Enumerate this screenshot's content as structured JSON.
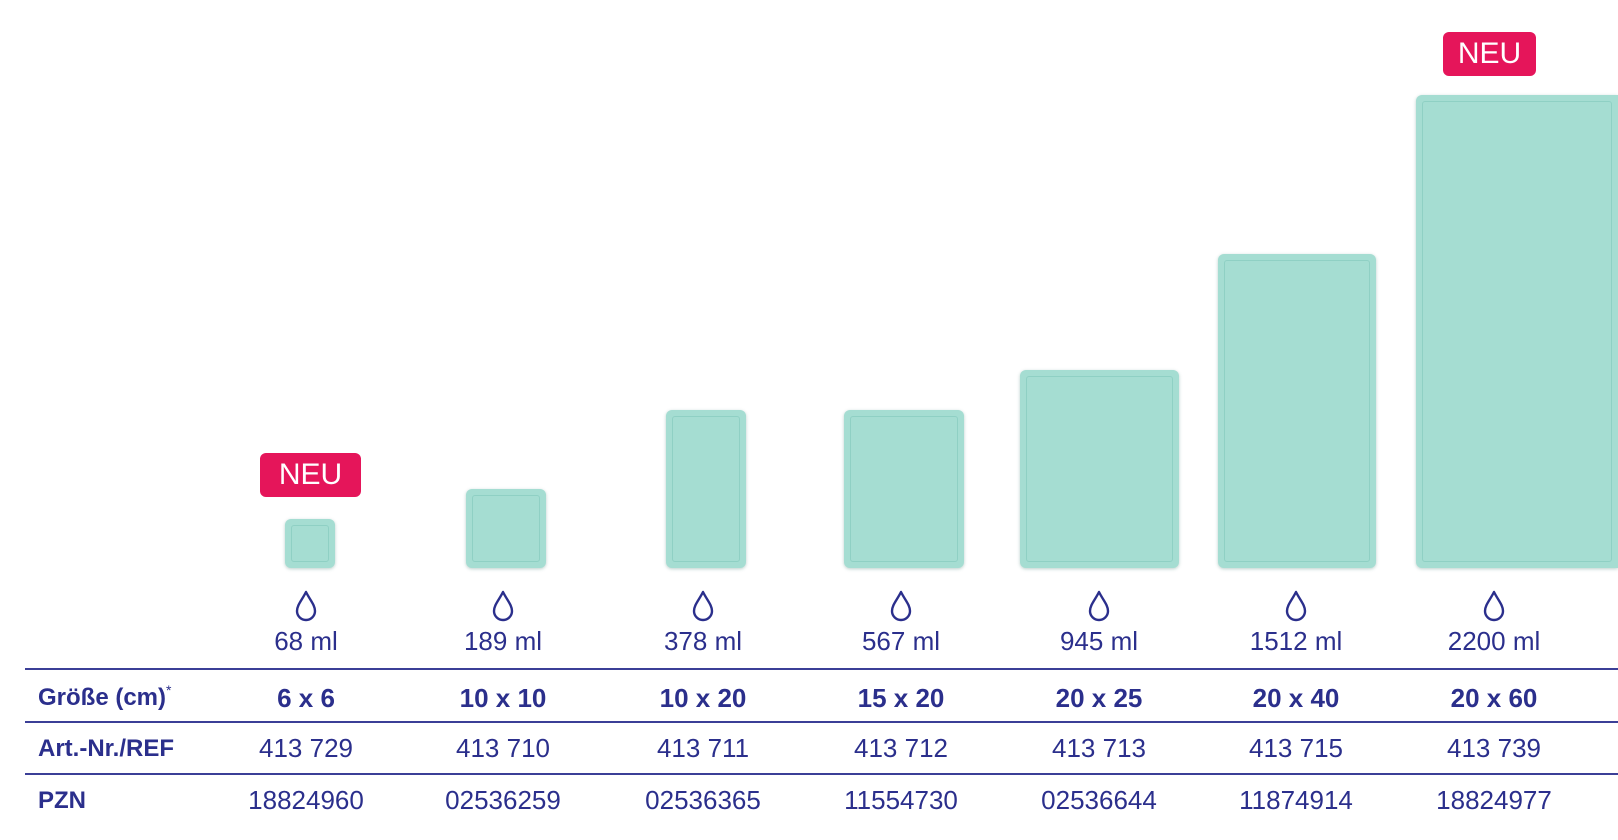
{
  "badge_label": "NEU",
  "rows": {
    "size_label": "Größe (cm)",
    "size_footnote": "*",
    "ref_label": "Art.-Nr./REF",
    "pzn_label": "PZN"
  },
  "products": [
    {
      "size": "6 x 6",
      "volume": "68 ml",
      "ref": "413 729",
      "pzn": "18824960",
      "is_new": true
    },
    {
      "size": "10 x 10",
      "volume": "189 ml",
      "ref": "413 710",
      "pzn": "02536259",
      "is_new": false
    },
    {
      "size": "10 x 20",
      "volume": "378 ml",
      "ref": "413 711",
      "pzn": "02536365",
      "is_new": false
    },
    {
      "size": "15 x 20",
      "volume": "567 ml",
      "ref": "413 712",
      "pzn": "11554730",
      "is_new": false
    },
    {
      "size": "20 x 25",
      "volume": "945 ml",
      "ref": "413 713",
      "pzn": "02536644",
      "is_new": false
    },
    {
      "size": "20 x 40",
      "volume": "1512 ml",
      "ref": "413 715",
      "pzn": "11874914",
      "is_new": false
    },
    {
      "size": "20 x 60",
      "volume": "2200 ml",
      "ref": "413 739",
      "pzn": "18824977",
      "is_new": true
    }
  ],
  "colors": {
    "accent": "#e5155a",
    "text": "#2b2f8c",
    "product": "#a5ddd2",
    "rule": "#3b3f97"
  },
  "icons": {
    "volume": "drop-icon"
  }
}
